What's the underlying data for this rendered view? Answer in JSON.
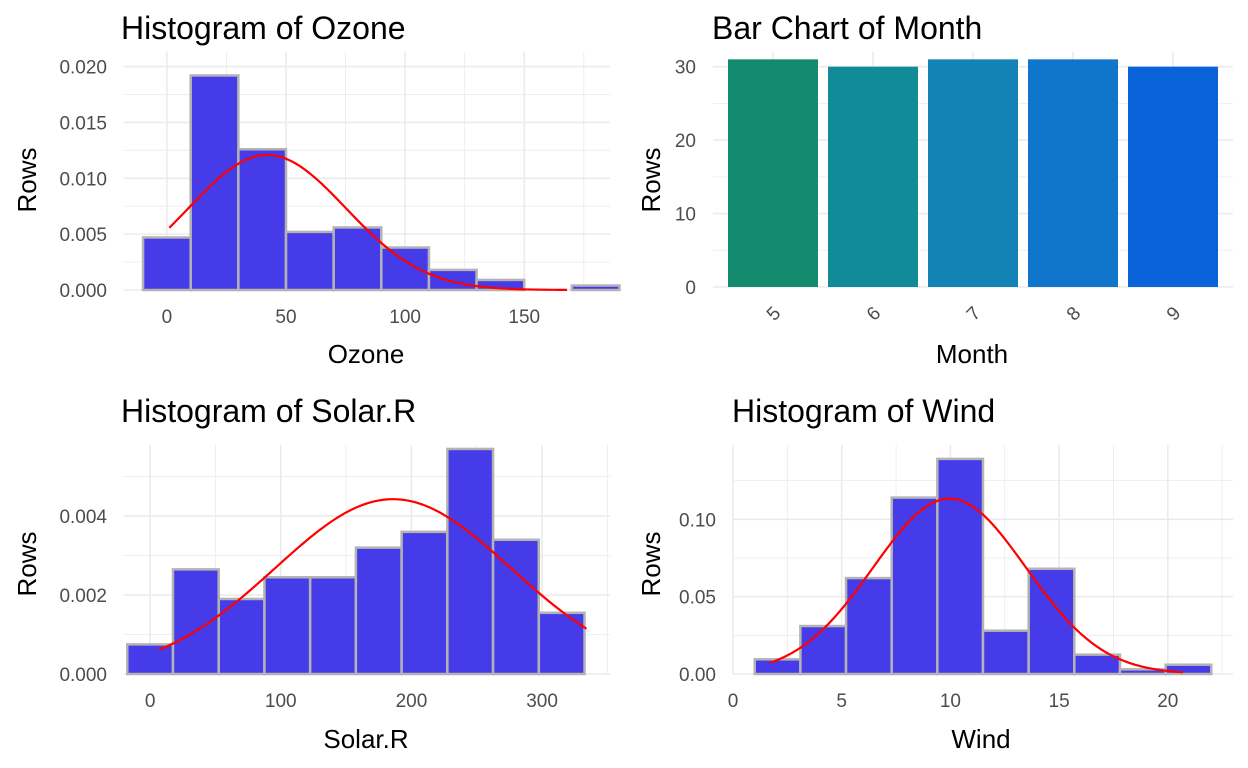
{
  "chart_data": [
    {
      "type": "bar",
      "subtype": "histogram",
      "title": "Histogram of Ozone",
      "xlabel": "Ozone",
      "ylabel": "Rows",
      "xlim": [
        -18,
        186
      ],
      "ylim": [
        0,
        0.0213
      ],
      "xticks": [
        0,
        50,
        100,
        150
      ],
      "yticks": [
        0,
        0.005,
        0.01,
        0.015,
        0.02
      ],
      "ytick_labels": [
        "0.000",
        "0.005",
        "0.010",
        "0.015",
        "0.020"
      ],
      "bins": [
        {
          "x0": -10,
          "x1": 10,
          "value": 0.0047
        },
        {
          "x0": 10,
          "x1": 30,
          "value": 0.0192
        },
        {
          "x0": 30,
          "x1": 50,
          "value": 0.0126
        },
        {
          "x0": 50,
          "x1": 70,
          "value": 0.0052
        },
        {
          "x0": 70,
          "x1": 90,
          "value": 0.0056
        },
        {
          "x0": 90,
          "x1": 110,
          "value": 0.0038
        },
        {
          "x0": 110,
          "x1": 130,
          "value": 0.0018
        },
        {
          "x0": 130,
          "x1": 150,
          "value": 0.0009
        },
        {
          "x0": 150,
          "x1": 170,
          "value": 0
        },
        {
          "x0": 170,
          "x1": 190,
          "value": 0.0004
        }
      ],
      "density_curve": {
        "mean": 42.1,
        "sd": 33.0,
        "from": 1,
        "to": 168
      },
      "bar_color": "#463be9",
      "bar_border": "#b3b3b3",
      "curve_color": "#ff0000",
      "grid": true
    },
    {
      "type": "bar",
      "title": "Bar Chart of Month",
      "xlabel": "Month",
      "ylabel": "Rows",
      "categories": [
        "5",
        "6",
        "7",
        "8",
        "9"
      ],
      "values": [
        31,
        30,
        31,
        31,
        30
      ],
      "colors": [
        "#148a6e",
        "#128b98",
        "#1283b4",
        "#0f76cc",
        "#0b63d9"
      ],
      "ylim": [
        0,
        32
      ],
      "yticks": [
        0,
        10,
        20,
        30
      ],
      "xtick_rotation": -45,
      "grid": true
    },
    {
      "type": "bar",
      "subtype": "histogram",
      "title": "Histogram of Solar.R",
      "xlabel": "Solar.R",
      "ylabel": "Rows",
      "xlim": [
        -20,
        352
      ],
      "ylim": [
        0,
        0.0058
      ],
      "xticks": [
        0,
        100,
        200,
        300
      ],
      "yticks": [
        0,
        0.002,
        0.004
      ],
      "ytick_labels": [
        "0.000",
        "0.002",
        "0.004"
      ],
      "bins": [
        {
          "x0": -17.5,
          "x1": 17.5,
          "value": 0.00075
        },
        {
          "x0": 17.5,
          "x1": 52.5,
          "value": 0.00265
        },
        {
          "x0": 52.5,
          "x1": 87.5,
          "value": 0.0019
        },
        {
          "x0": 87.5,
          "x1": 122.5,
          "value": 0.00245
        },
        {
          "x0": 122.5,
          "x1": 157.5,
          "value": 0.00245
        },
        {
          "x0": 157.5,
          "x1": 192.5,
          "value": 0.0032
        },
        {
          "x0": 192.5,
          "x1": 227.5,
          "value": 0.0036
        },
        {
          "x0": 227.5,
          "x1": 262.5,
          "value": 0.0057
        },
        {
          "x0": 262.5,
          "x1": 297.5,
          "value": 0.0034
        },
        {
          "x0": 297.5,
          "x1": 332.5,
          "value": 0.00155
        }
      ],
      "density_curve": {
        "mean": 185.9,
        "sd": 90.1,
        "from": 7,
        "to": 334
      },
      "bar_color": "#463be9",
      "bar_border": "#b3b3b3",
      "curve_color": "#ff0000",
      "grid": true
    },
    {
      "type": "bar",
      "subtype": "histogram",
      "title": "Histogram of Wind",
      "xlabel": "Wind",
      "ylabel": "Rows",
      "xlim": [
        0,
        23
      ],
      "ylim": [
        0,
        0.148
      ],
      "xticks": [
        0,
        5,
        10,
        15,
        20
      ],
      "yticks": [
        0,
        0.05,
        0.1
      ],
      "ytick_labels": [
        "0.00",
        "0.05",
        "0.10"
      ],
      "bins": [
        {
          "x0": 1,
          "x1": 3.1,
          "value": 0.0095
        },
        {
          "x0": 3.1,
          "x1": 5.2,
          "value": 0.031
        },
        {
          "x0": 5.2,
          "x1": 7.3,
          "value": 0.062
        },
        {
          "x0": 7.3,
          "x1": 9.4,
          "value": 0.114
        },
        {
          "x0": 9.4,
          "x1": 11.5,
          "value": 0.139
        },
        {
          "x0": 11.5,
          "x1": 13.6,
          "value": 0.028
        },
        {
          "x0": 13.6,
          "x1": 15.7,
          "value": 0.068
        },
        {
          "x0": 15.7,
          "x1": 17.8,
          "value": 0.0125
        },
        {
          "x0": 17.8,
          "x1": 19.9,
          "value": 0.003
        },
        {
          "x0": 19.9,
          "x1": 22,
          "value": 0.006
        }
      ],
      "density_curve": {
        "mean": 9.96,
        "sd": 3.52,
        "from": 1.7,
        "to": 20.7
      },
      "bar_color": "#463be9",
      "bar_border": "#b3b3b3",
      "curve_color": "#ff0000",
      "grid": true
    }
  ]
}
